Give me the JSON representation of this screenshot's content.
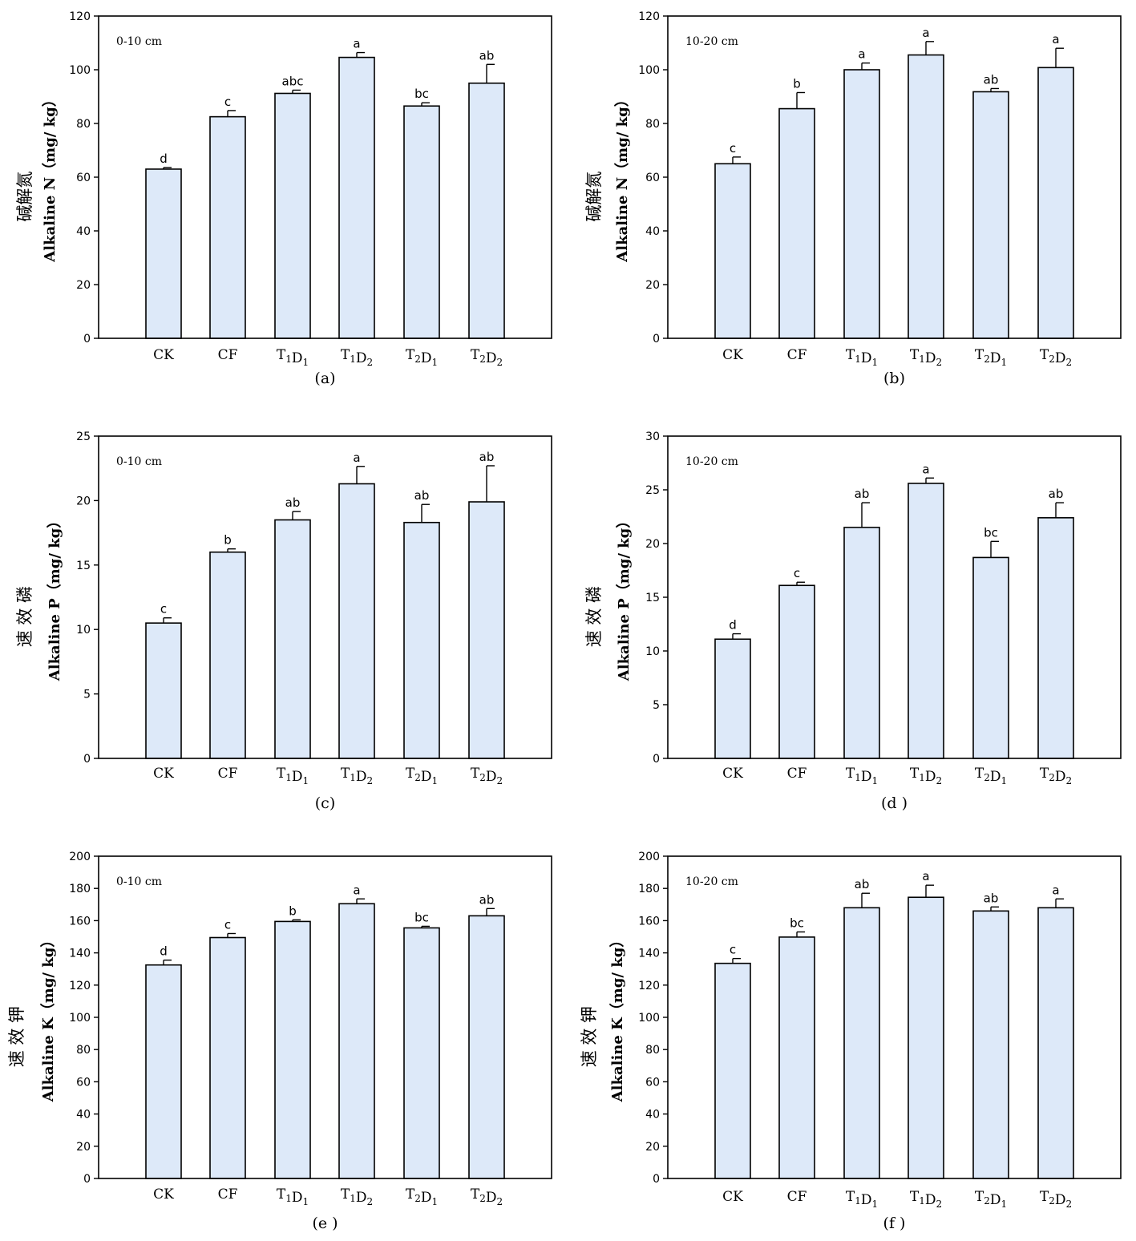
{
  "chart_data": [
    {
      "type": "bar",
      "panel_label": "(a)",
      "depth_label": "0-10 cm",
      "ylabel_cn": "碱解氮",
      "ylabel": "Alkaline N（mg/ kg）",
      "categories": [
        {
          "base": "CK",
          "parts": []
        },
        {
          "base": "CF",
          "parts": []
        },
        {
          "base": "",
          "parts": [
            [
              "T",
              "1"
            ],
            [
              "D",
              "1"
            ]
          ]
        },
        {
          "base": "",
          "parts": [
            [
              "T",
              "1"
            ],
            [
              "D",
              "2"
            ]
          ]
        },
        {
          "base": "",
          "parts": [
            [
              "T",
              "2"
            ],
            [
              "D",
              "1"
            ]
          ]
        },
        {
          "base": "",
          "parts": [
            [
              "T",
              "2"
            ],
            [
              "D",
              "2"
            ]
          ]
        }
      ],
      "values": [
        63,
        82.5,
        91.2,
        104.6,
        86.5,
        95
      ],
      "errors": [
        0.6,
        2.3,
        1.2,
        1.8,
        1.2,
        7
      ],
      "significance": [
        "d",
        "c",
        "abc",
        "a",
        "bc",
        "ab"
      ],
      "ylim": [
        0,
        120
      ],
      "yticks": [
        0,
        20,
        40,
        60,
        80,
        100,
        120
      ]
    },
    {
      "type": "bar",
      "panel_label": "(b)",
      "depth_label": "10-20 cm",
      "ylabel_cn": "碱解氮",
      "ylabel": "Alkaline N（mg/ kg）",
      "categories": [
        {
          "base": "CK",
          "parts": []
        },
        {
          "base": "CF",
          "parts": []
        },
        {
          "base": "",
          "parts": [
            [
              "T",
              "1"
            ],
            [
              "D",
              "1"
            ]
          ]
        },
        {
          "base": "",
          "parts": [
            [
              "T",
              "1"
            ],
            [
              "D",
              "2"
            ]
          ]
        },
        {
          "base": "",
          "parts": [
            [
              "T",
              "2"
            ],
            [
              "D",
              "1"
            ]
          ]
        },
        {
          "base": "",
          "parts": [
            [
              "T",
              "2"
            ],
            [
              "D",
              "2"
            ]
          ]
        }
      ],
      "values": [
        65,
        85.5,
        100,
        105.5,
        91.8,
        100.8
      ],
      "errors": [
        2.5,
        6,
        2.5,
        5,
        1.2,
        7.2
      ],
      "significance": [
        "c",
        "b",
        "a",
        "a",
        "ab",
        "a"
      ],
      "ylim": [
        0,
        120
      ],
      "yticks": [
        0,
        20,
        40,
        60,
        80,
        100,
        120
      ]
    },
    {
      "type": "bar",
      "panel_label": "(c)",
      "depth_label": "0-10 cm",
      "ylabel_cn": "速 效 磷",
      "ylabel": "Alkaline P（mg/ kg）",
      "categories": [
        {
          "base": "CK",
          "parts": []
        },
        {
          "base": "CF",
          "parts": []
        },
        {
          "base": "",
          "parts": [
            [
              "T",
              "1"
            ],
            [
              "D",
              "1"
            ]
          ]
        },
        {
          "base": "",
          "parts": [
            [
              "T",
              "1"
            ],
            [
              "D",
              "2"
            ]
          ]
        },
        {
          "base": "",
          "parts": [
            [
              "T",
              "2"
            ],
            [
              "D",
              "1"
            ]
          ]
        },
        {
          "base": "",
          "parts": [
            [
              "T",
              "2"
            ],
            [
              "D",
              "2"
            ]
          ]
        }
      ],
      "values": [
        10.5,
        16,
        18.5,
        21.3,
        18.3,
        19.9
      ],
      "errors": [
        0.4,
        0.25,
        0.65,
        1.35,
        1.4,
        2.8
      ],
      "significance": [
        "c",
        "b",
        "ab",
        "a",
        "ab",
        "ab"
      ],
      "ylim": [
        0,
        25
      ],
      "yticks": [
        0,
        5,
        10,
        15,
        20,
        25
      ]
    },
    {
      "type": "bar",
      "panel_label": "(d )",
      "depth_label": "10-20 cm",
      "ylabel_cn": "速 效 磷",
      "ylabel": "Alkaline P（mg/ kg）",
      "categories": [
        {
          "base": "CK",
          "parts": []
        },
        {
          "base": "CF",
          "parts": []
        },
        {
          "base": "",
          "parts": [
            [
              "T",
              "1"
            ],
            [
              "D",
              "1"
            ]
          ]
        },
        {
          "base": "",
          "parts": [
            [
              "T",
              "1"
            ],
            [
              "D",
              "2"
            ]
          ]
        },
        {
          "base": "",
          "parts": [
            [
              "T",
              "2"
            ],
            [
              "D",
              "1"
            ]
          ]
        },
        {
          "base": "",
          "parts": [
            [
              "T",
              "2"
            ],
            [
              "D",
              "2"
            ]
          ]
        }
      ],
      "values": [
        11.1,
        16.1,
        21.5,
        25.6,
        18.7,
        22.4
      ],
      "errors": [
        0.5,
        0.3,
        2.3,
        0.5,
        1.5,
        1.4
      ],
      "significance": [
        "d",
        "c",
        "ab",
        "a",
        "bc",
        "ab"
      ],
      "ylim": [
        0,
        30
      ],
      "yticks": [
        0,
        5,
        10,
        15,
        20,
        25,
        30
      ]
    },
    {
      "type": "bar",
      "panel_label": "(e )",
      "depth_label": "0-10 cm",
      "ylabel_cn": "速 效 钾",
      "ylabel": "Alkaline K（mg/ kg）",
      "categories": [
        {
          "base": "CK",
          "parts": []
        },
        {
          "base": "CF",
          "parts": []
        },
        {
          "base": "",
          "parts": [
            [
              "T",
              "1"
            ],
            [
              "D",
              "1"
            ]
          ]
        },
        {
          "base": "",
          "parts": [
            [
              "T",
              "1"
            ],
            [
              "D",
              "2"
            ]
          ]
        },
        {
          "base": "",
          "parts": [
            [
              "T",
              "2"
            ],
            [
              "D",
              "1"
            ]
          ]
        },
        {
          "base": "",
          "parts": [
            [
              "T",
              "2"
            ],
            [
              "D",
              "2"
            ]
          ]
        }
      ],
      "values": [
        132.5,
        149.5,
        159.5,
        170.5,
        155.5,
        163
      ],
      "errors": [
        3,
        2.5,
        1,
        3,
        1,
        4.5
      ],
      "significance": [
        "d",
        "c",
        "b",
        "a",
        "bc",
        "ab"
      ],
      "ylim": [
        0,
        200
      ],
      "yticks": [
        0,
        20,
        40,
        60,
        80,
        100,
        120,
        140,
        160,
        180,
        200
      ]
    },
    {
      "type": "bar",
      "panel_label": "(f )",
      "depth_label": "10-20 cm",
      "ylabel_cn": "速 效 钾",
      "ylabel": "Alkaline K（mg/ kg）",
      "categories": [
        {
          "base": "CK",
          "parts": []
        },
        {
          "base": "CF",
          "parts": []
        },
        {
          "base": "",
          "parts": [
            [
              "T",
              "1"
            ],
            [
              "D",
              "1"
            ]
          ]
        },
        {
          "base": "",
          "parts": [
            [
              "T",
              "1"
            ],
            [
              "D",
              "2"
            ]
          ]
        },
        {
          "base": "",
          "parts": [
            [
              "T",
              "2"
            ],
            [
              "D",
              "1"
            ]
          ]
        },
        {
          "base": "",
          "parts": [
            [
              "T",
              "2"
            ],
            [
              "D",
              "2"
            ]
          ]
        }
      ],
      "values": [
        133.5,
        149.8,
        168,
        174.5,
        166,
        168
      ],
      "errors": [
        3,
        3.2,
        9,
        7.5,
        2.5,
        5.5
      ],
      "significance": [
        "c",
        "bc",
        "ab",
        "a",
        "ab",
        "a"
      ],
      "ylim": [
        0,
        200
      ],
      "yticks": [
        0,
        20,
        40,
        60,
        80,
        100,
        120,
        140,
        160,
        180,
        200
      ]
    }
  ]
}
